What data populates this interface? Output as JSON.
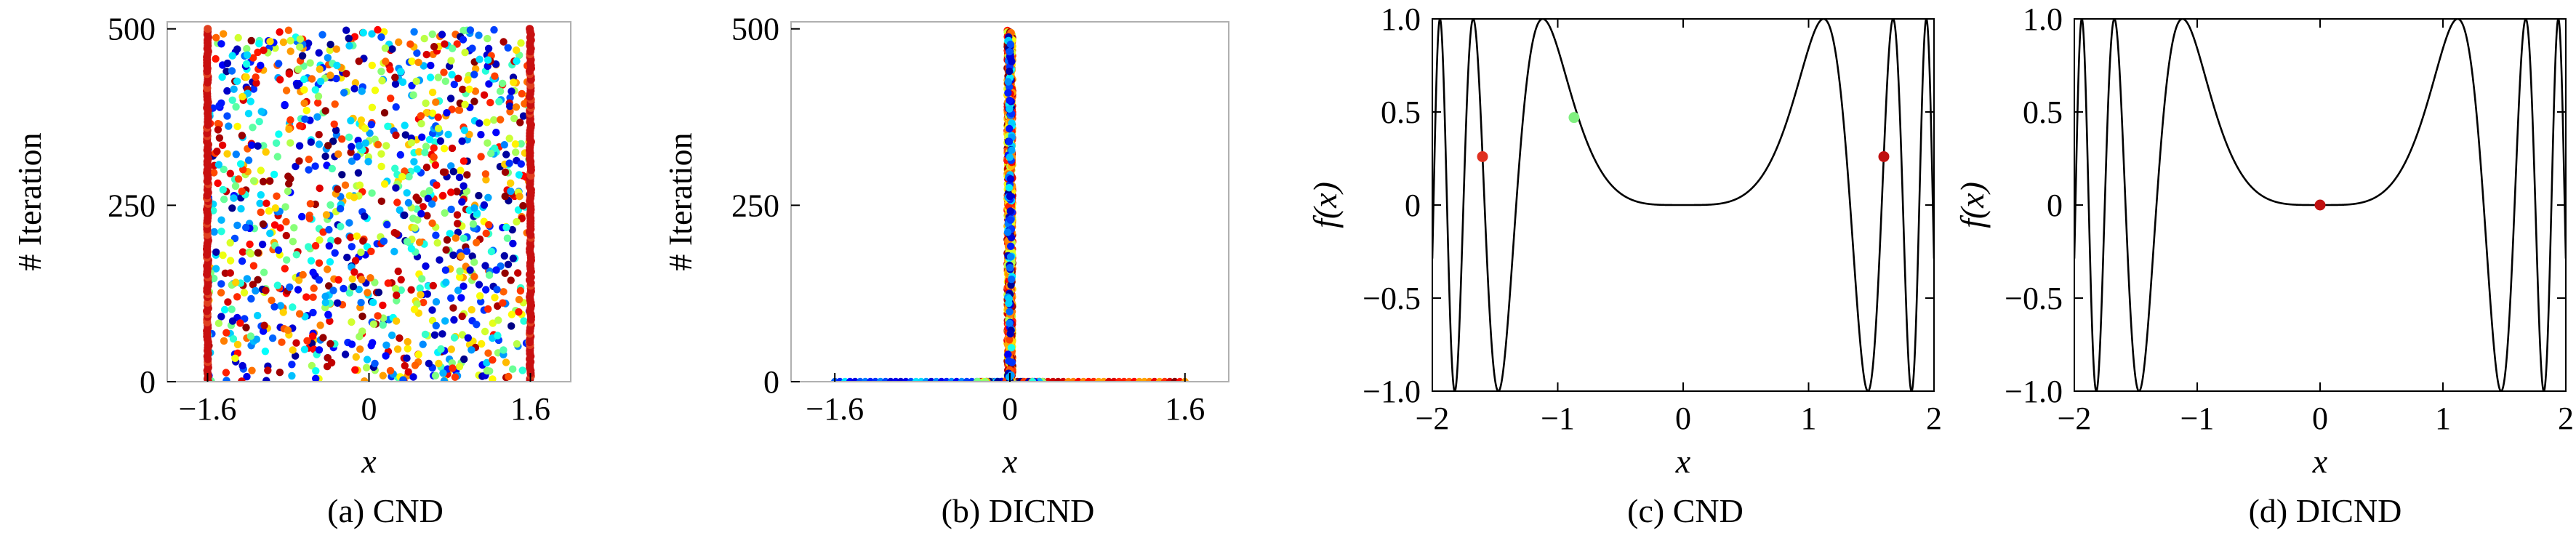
{
  "chart_data": [
    {
      "id": "a",
      "type": "scatter",
      "caption": "(a) CND",
      "xlabel": "x",
      "ylabel": "# Iteration",
      "xlim": [
        -2.0,
        2.0
      ],
      "ylim": [
        0,
        510
      ],
      "xticks": [
        -1.6,
        0,
        1.6
      ],
      "xtick_labels": [
        "−1.6",
        "0",
        "1.6"
      ],
      "yticks": [
        0,
        250,
        500
      ],
      "ytick_labels": [
        "0",
        "250",
        "500"
      ],
      "frame_color": "#b0b0b0",
      "distribution": "uniform scatter over x in [-1.6, 1.6] for iterations 0-500, with dense vertical lines at x = -1.6 and x = 1.6",
      "boundary_x": [
        -1.6,
        1.6
      ],
      "n_points": 1200,
      "colormap": "jet"
    },
    {
      "id": "b",
      "type": "scatter",
      "caption": "(b) DICND",
      "xlabel": "x",
      "ylabel": "# Iteration",
      "xlim": [
        -2.0,
        2.0
      ],
      "ylim": [
        0,
        510
      ],
      "xticks": [
        -1.6,
        0,
        1.6
      ],
      "xtick_labels": [
        "−1.6",
        "0",
        "1.6"
      ],
      "yticks": [
        0,
        250,
        500
      ],
      "ytick_labels": [
        "0",
        "250",
        "500"
      ],
      "frame_color": "#b0b0b0",
      "distribution": "points spread along x in [-1.6, 1.6] at iteration 0, then concentrated at x = 0 for iterations 0-500",
      "colormap": "jet"
    },
    {
      "id": "c",
      "type": "line",
      "caption": "(c) CND",
      "xlabel": "x",
      "ylabel": "f(x)",
      "xlim": [
        -2,
        2
      ],
      "ylim": [
        -1.0,
        1.0
      ],
      "xticks": [
        -2,
        -1,
        0,
        1,
        2
      ],
      "xtick_labels": [
        "−2",
        "−1",
        "0",
        "1",
        "2"
      ],
      "yticks": [
        -1.0,
        -0.5,
        0,
        0.5,
        1.0
      ],
      "ytick_labels": [
        "−1.0",
        "−0.5",
        "0",
        "0.5",
        "1.0"
      ],
      "function": "sin(x^4)",
      "line_color": "#000000",
      "points": [
        {
          "x": -1.6,
          "y": 0.26,
          "color": "#e03020"
        },
        {
          "x": -0.87,
          "y": 0.47,
          "color": "#80f080"
        },
        {
          "x": 1.6,
          "y": 0.26,
          "color": "#c01010"
        }
      ]
    },
    {
      "id": "d",
      "type": "line",
      "caption": "(d) DICND",
      "xlabel": "x",
      "ylabel": "f(x)",
      "xlim": [
        -2,
        2
      ],
      "ylim": [
        -1.0,
        1.0
      ],
      "xticks": [
        -2,
        -1,
        0,
        1,
        2
      ],
      "xtick_labels": [
        "−2",
        "−1",
        "0",
        "1",
        "2"
      ],
      "yticks": [
        -1.0,
        -0.5,
        0,
        0.5,
        1.0
      ],
      "ytick_labels": [
        "−1.0",
        "−0.5",
        "0",
        "0.5",
        "1.0"
      ],
      "function": "sin(x^4)",
      "line_color": "#000000",
      "points": [
        {
          "x": 0.0,
          "y": 0.0,
          "color": "#c01010"
        }
      ]
    }
  ]
}
